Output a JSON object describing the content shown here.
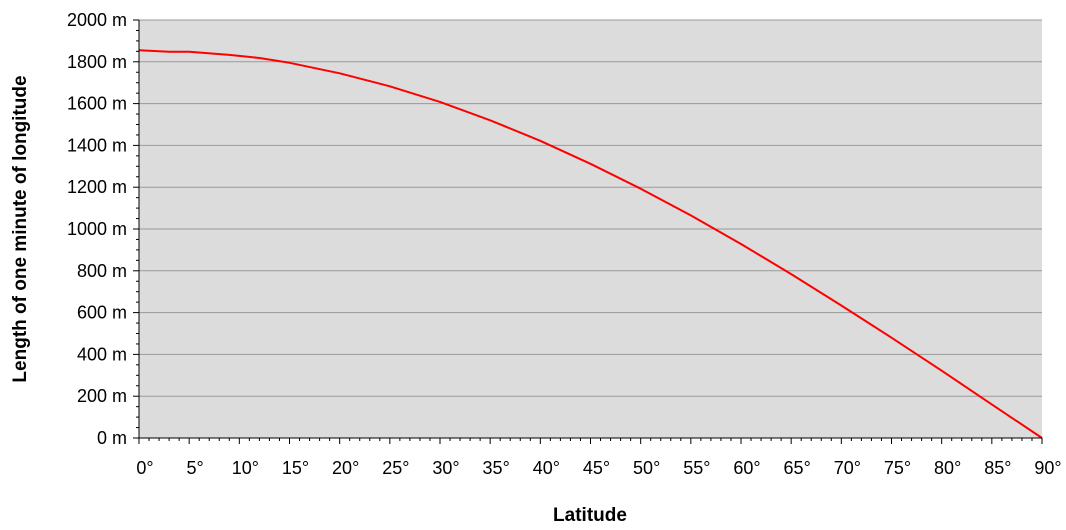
{
  "chart_data": {
    "type": "line",
    "title": "",
    "xlabel": "Latitude",
    "ylabel": "Length of one minute of longitude",
    "xlim": [
      0,
      90
    ],
    "ylim": [
      0,
      2000
    ],
    "x_ticks": [
      "0°",
      "5°",
      "10°",
      "15°",
      "20°",
      "25°",
      "30°",
      "35°",
      "40°",
      "45°",
      "50°",
      "55°",
      "60°",
      "65°",
      "70°",
      "75°",
      "80°",
      "85°",
      "90°"
    ],
    "y_ticks": [
      "0 m",
      "200 m",
      "400 m",
      "600 m",
      "800 m",
      "1000 m",
      "1200 m",
      "1400 m",
      "1600 m",
      "1800 m",
      "2000 m"
    ],
    "grid": "horizontal",
    "legend": "none",
    "colors": {
      "plot_background": "#dcdcdc",
      "line": "#ff0000",
      "grid": "#999999",
      "axis": "#000000"
    },
    "series": [
      {
        "x": [
          0,
          3,
          5,
          9,
          10,
          12,
          15,
          20,
          25,
          30,
          35,
          40,
          45,
          50,
          55,
          60,
          65,
          70,
          75,
          80,
          85,
          90
        ],
        "y": [
          1855,
          1848,
          1848,
          1833,
          1828,
          1818,
          1795,
          1745,
          1683,
          1608,
          1520,
          1422,
          1312,
          1193,
          1065,
          928,
          784,
          634,
          480,
          322,
          161,
          0
        ]
      }
    ]
  }
}
